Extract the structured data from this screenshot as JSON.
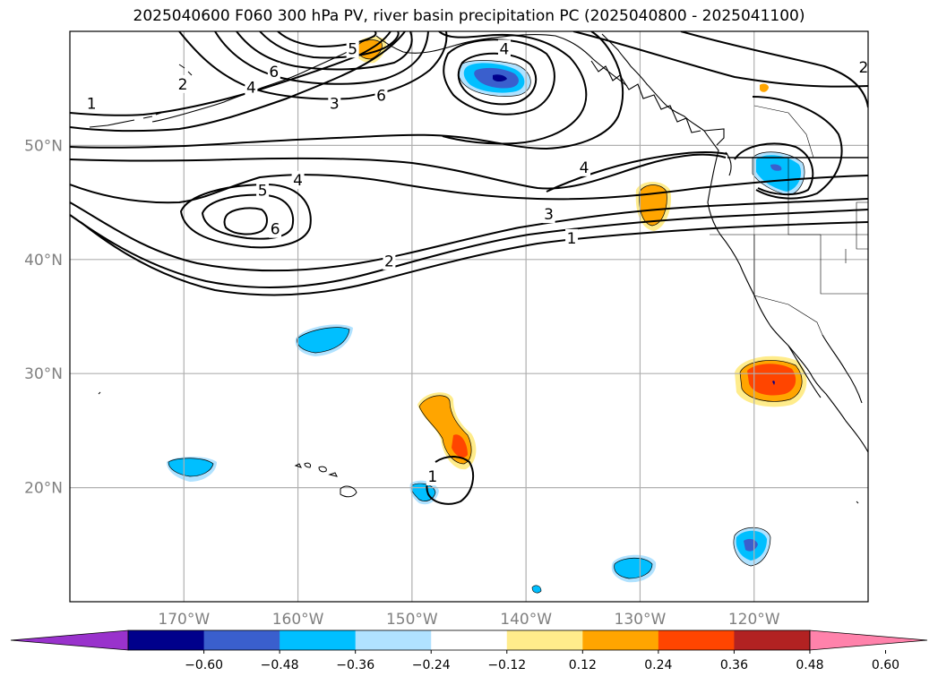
{
  "title": "2025040600 F060 300 hPa PV, river basin precipitation PC (2025040800 - 2025041100)",
  "map": {
    "lon_range": [
      -180,
      -110
    ],
    "lat_range": [
      10,
      60
    ],
    "lat_ticks": [
      {
        "value": 20,
        "label": "20°N"
      },
      {
        "value": 30,
        "label": "30°N"
      },
      {
        "value": 40,
        "label": "40°N"
      },
      {
        "value": 50,
        "label": "50°N"
      }
    ],
    "lon_ticks": [
      {
        "value": -170,
        "label": "170°W"
      },
      {
        "value": -160,
        "label": "160°W"
      },
      {
        "value": -150,
        "label": "150°W"
      },
      {
        "value": -140,
        "label": "140°W"
      },
      {
        "value": -130,
        "label": "130°W"
      },
      {
        "value": -120,
        "label": "120°W"
      }
    ],
    "grid": true
  },
  "colorbar": {
    "colors": [
      "#9932cc",
      "#00008b",
      "#3a5fcd",
      "#00bfff",
      "#b0e2ff",
      "#ffffff",
      "#ffec8b",
      "#ffa500",
      "#ff4500",
      "#b22222",
      "#ff82ab"
    ],
    "ticks": [
      "−0.60",
      "−0.48",
      "−0.36",
      "−0.24",
      "−0.12",
      "0.12",
      "0.24",
      "0.36",
      "0.48",
      "0.60"
    ]
  },
  "contour_labels": [
    {
      "text": "5",
      "lon": -155.2,
      "lat": 58.4
    },
    {
      "text": "4",
      "lon": -141.9,
      "lat": 58.4
    },
    {
      "text": "2",
      "lon": -110.4,
      "lat": 56.8
    },
    {
      "text": "2",
      "lon": -170.1,
      "lat": 55.3
    },
    {
      "text": "6",
      "lon": -162.1,
      "lat": 56.4
    },
    {
      "text": "4",
      "lon": -164.1,
      "lat": 55.0
    },
    {
      "text": "6",
      "lon": -152.7,
      "lat": 54.3
    },
    {
      "text": "1",
      "lon": -178.1,
      "lat": 53.6
    },
    {
      "text": "3",
      "lon": -156.8,
      "lat": 53.6
    },
    {
      "text": "4",
      "lon": -134.9,
      "lat": 48.0
    },
    {
      "text": "4",
      "lon": -160.0,
      "lat": 46.9
    },
    {
      "text": "5",
      "lon": -163.1,
      "lat": 46.0
    },
    {
      "text": "3",
      "lon": -138.0,
      "lat": 43.9
    },
    {
      "text": "6",
      "lon": -162.0,
      "lat": 42.6
    },
    {
      "text": "1",
      "lon": -136.0,
      "lat": 41.8
    },
    {
      "text": "2",
      "lon": -152.0,
      "lat": 39.8
    },
    {
      "text": "1",
      "lon": -148.2,
      "lat": 20.9
    }
  ]
}
